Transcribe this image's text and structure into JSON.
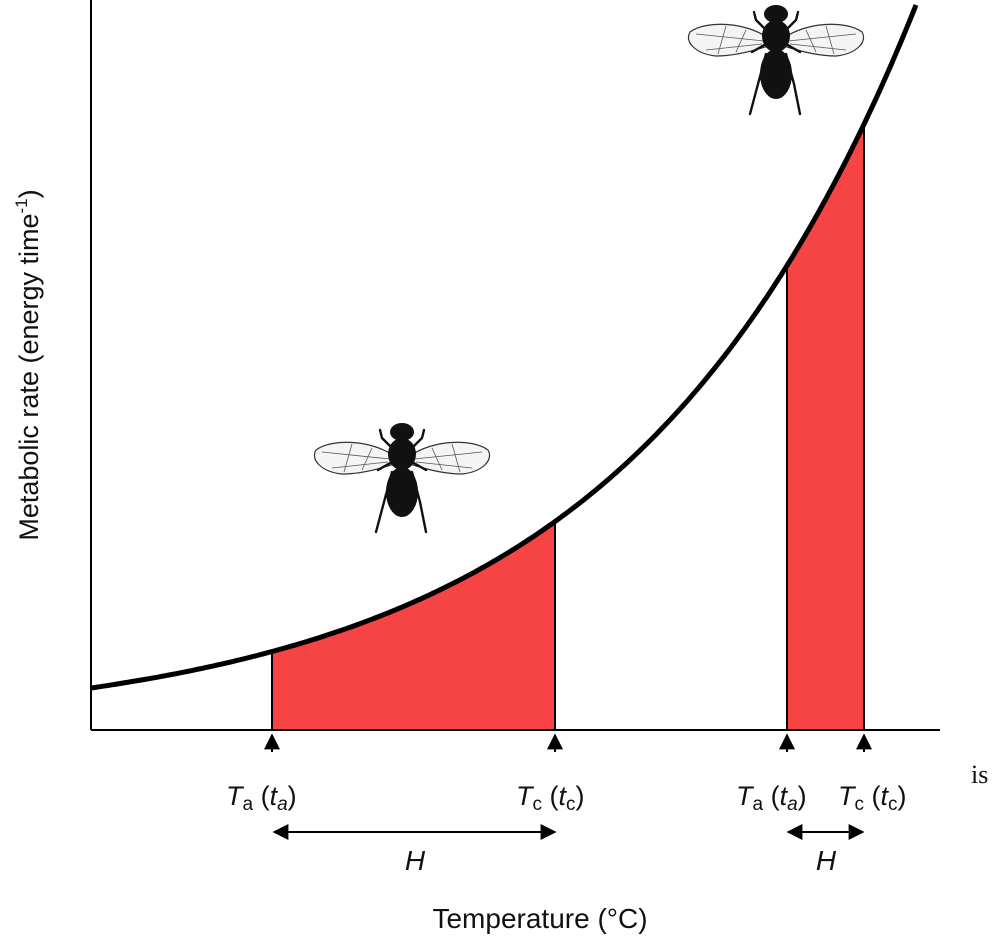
{
  "figure": {
    "y_axis_label": "Metabolic rate (energy time",
    "y_axis_label_sup": "-1",
    "y_axis_label_end": ")",
    "x_axis_label": "Temperature (°C)",
    "stray_text": "is"
  },
  "intervals": [
    {
      "start_label": {
        "sym": "T",
        "sub": "a",
        "open": " (",
        "sym2": "t",
        "sub2": "a",
        "close": ")"
      },
      "end_label": {
        "sym": "T",
        "sub": "c",
        "open": " (",
        "sym2": "t",
        "sub2": "c",
        "close": ")"
      },
      "span_label": "H"
    },
    {
      "start_label": {
        "sym": "T",
        "sub": "a",
        "open": " (",
        "sym2": "t",
        "sub2": "a",
        "close": ")"
      },
      "end_label": {
        "sym": "T",
        "sub": "c",
        "open": " (",
        "sym2": "t",
        "sub2": "c",
        "close": ")"
      },
      "span_label": "H"
    }
  ],
  "colors": {
    "fill": "#f64444",
    "curve": "#000000",
    "axis": "#000000",
    "fly": "#111111"
  },
  "icons": [
    "fly-icon",
    "fly-icon"
  ]
}
